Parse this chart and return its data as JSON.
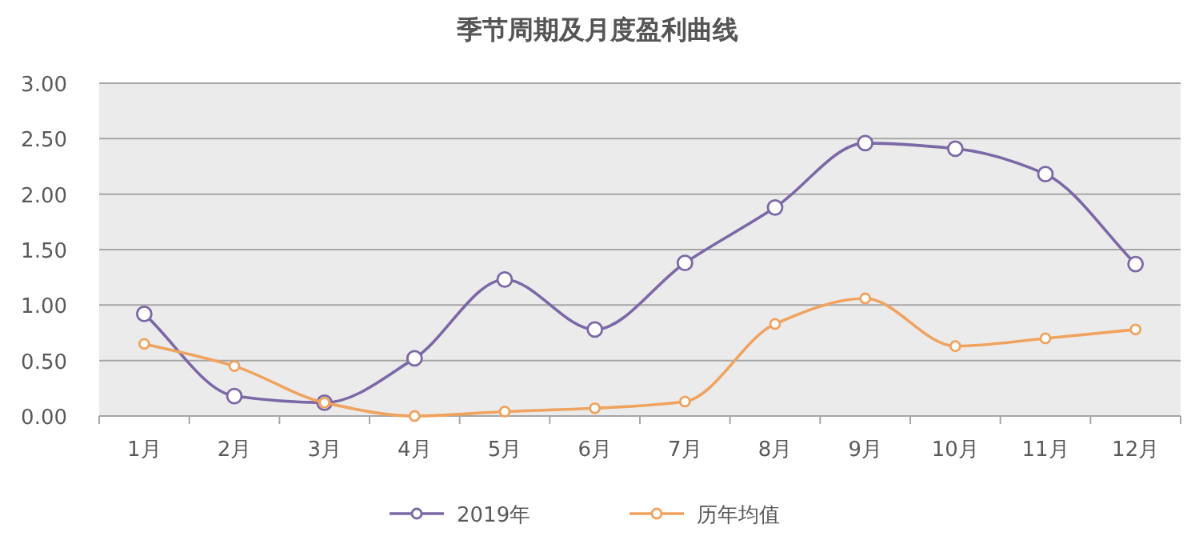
{
  "chart_data": {
    "type": "line",
    "title": "季节周期及月度盈利曲线",
    "categories": [
      "1月",
      "2月",
      "3月",
      "4月",
      "5月",
      "6月",
      "7月",
      "8月",
      "9月",
      "10月",
      "11月",
      "12月"
    ],
    "series": [
      {
        "name": "2019年",
        "color": "#7b68a6",
        "values": [
          0.92,
          0.18,
          0.12,
          0.52,
          1.23,
          0.78,
          1.38,
          1.88,
          2.46,
          2.41,
          2.18,
          1.37
        ]
      },
      {
        "name": "历年均值",
        "color": "#f0a35e",
        "values": [
          0.65,
          0.45,
          0.12,
          0.0,
          0.04,
          0.07,
          0.13,
          0.83,
          1.06,
          0.63,
          0.7,
          0.78
        ]
      }
    ],
    "ylim": [
      0,
      3
    ],
    "yticks": [
      {
        "value": 0,
        "label": "0.00"
      },
      {
        "value": 0.5,
        "label": "0.50"
      },
      {
        "value": 1,
        "label": "1.00"
      },
      {
        "value": 1.5,
        "label": "1.50"
      },
      {
        "value": 2,
        "label": "2.00"
      },
      {
        "value": 2.5,
        "label": "2.50"
      },
      {
        "value": 3,
        "label": "3.00"
      }
    ],
    "grid": "y",
    "legend": "bottom",
    "marker": "circle",
    "line_style": "solid"
  }
}
